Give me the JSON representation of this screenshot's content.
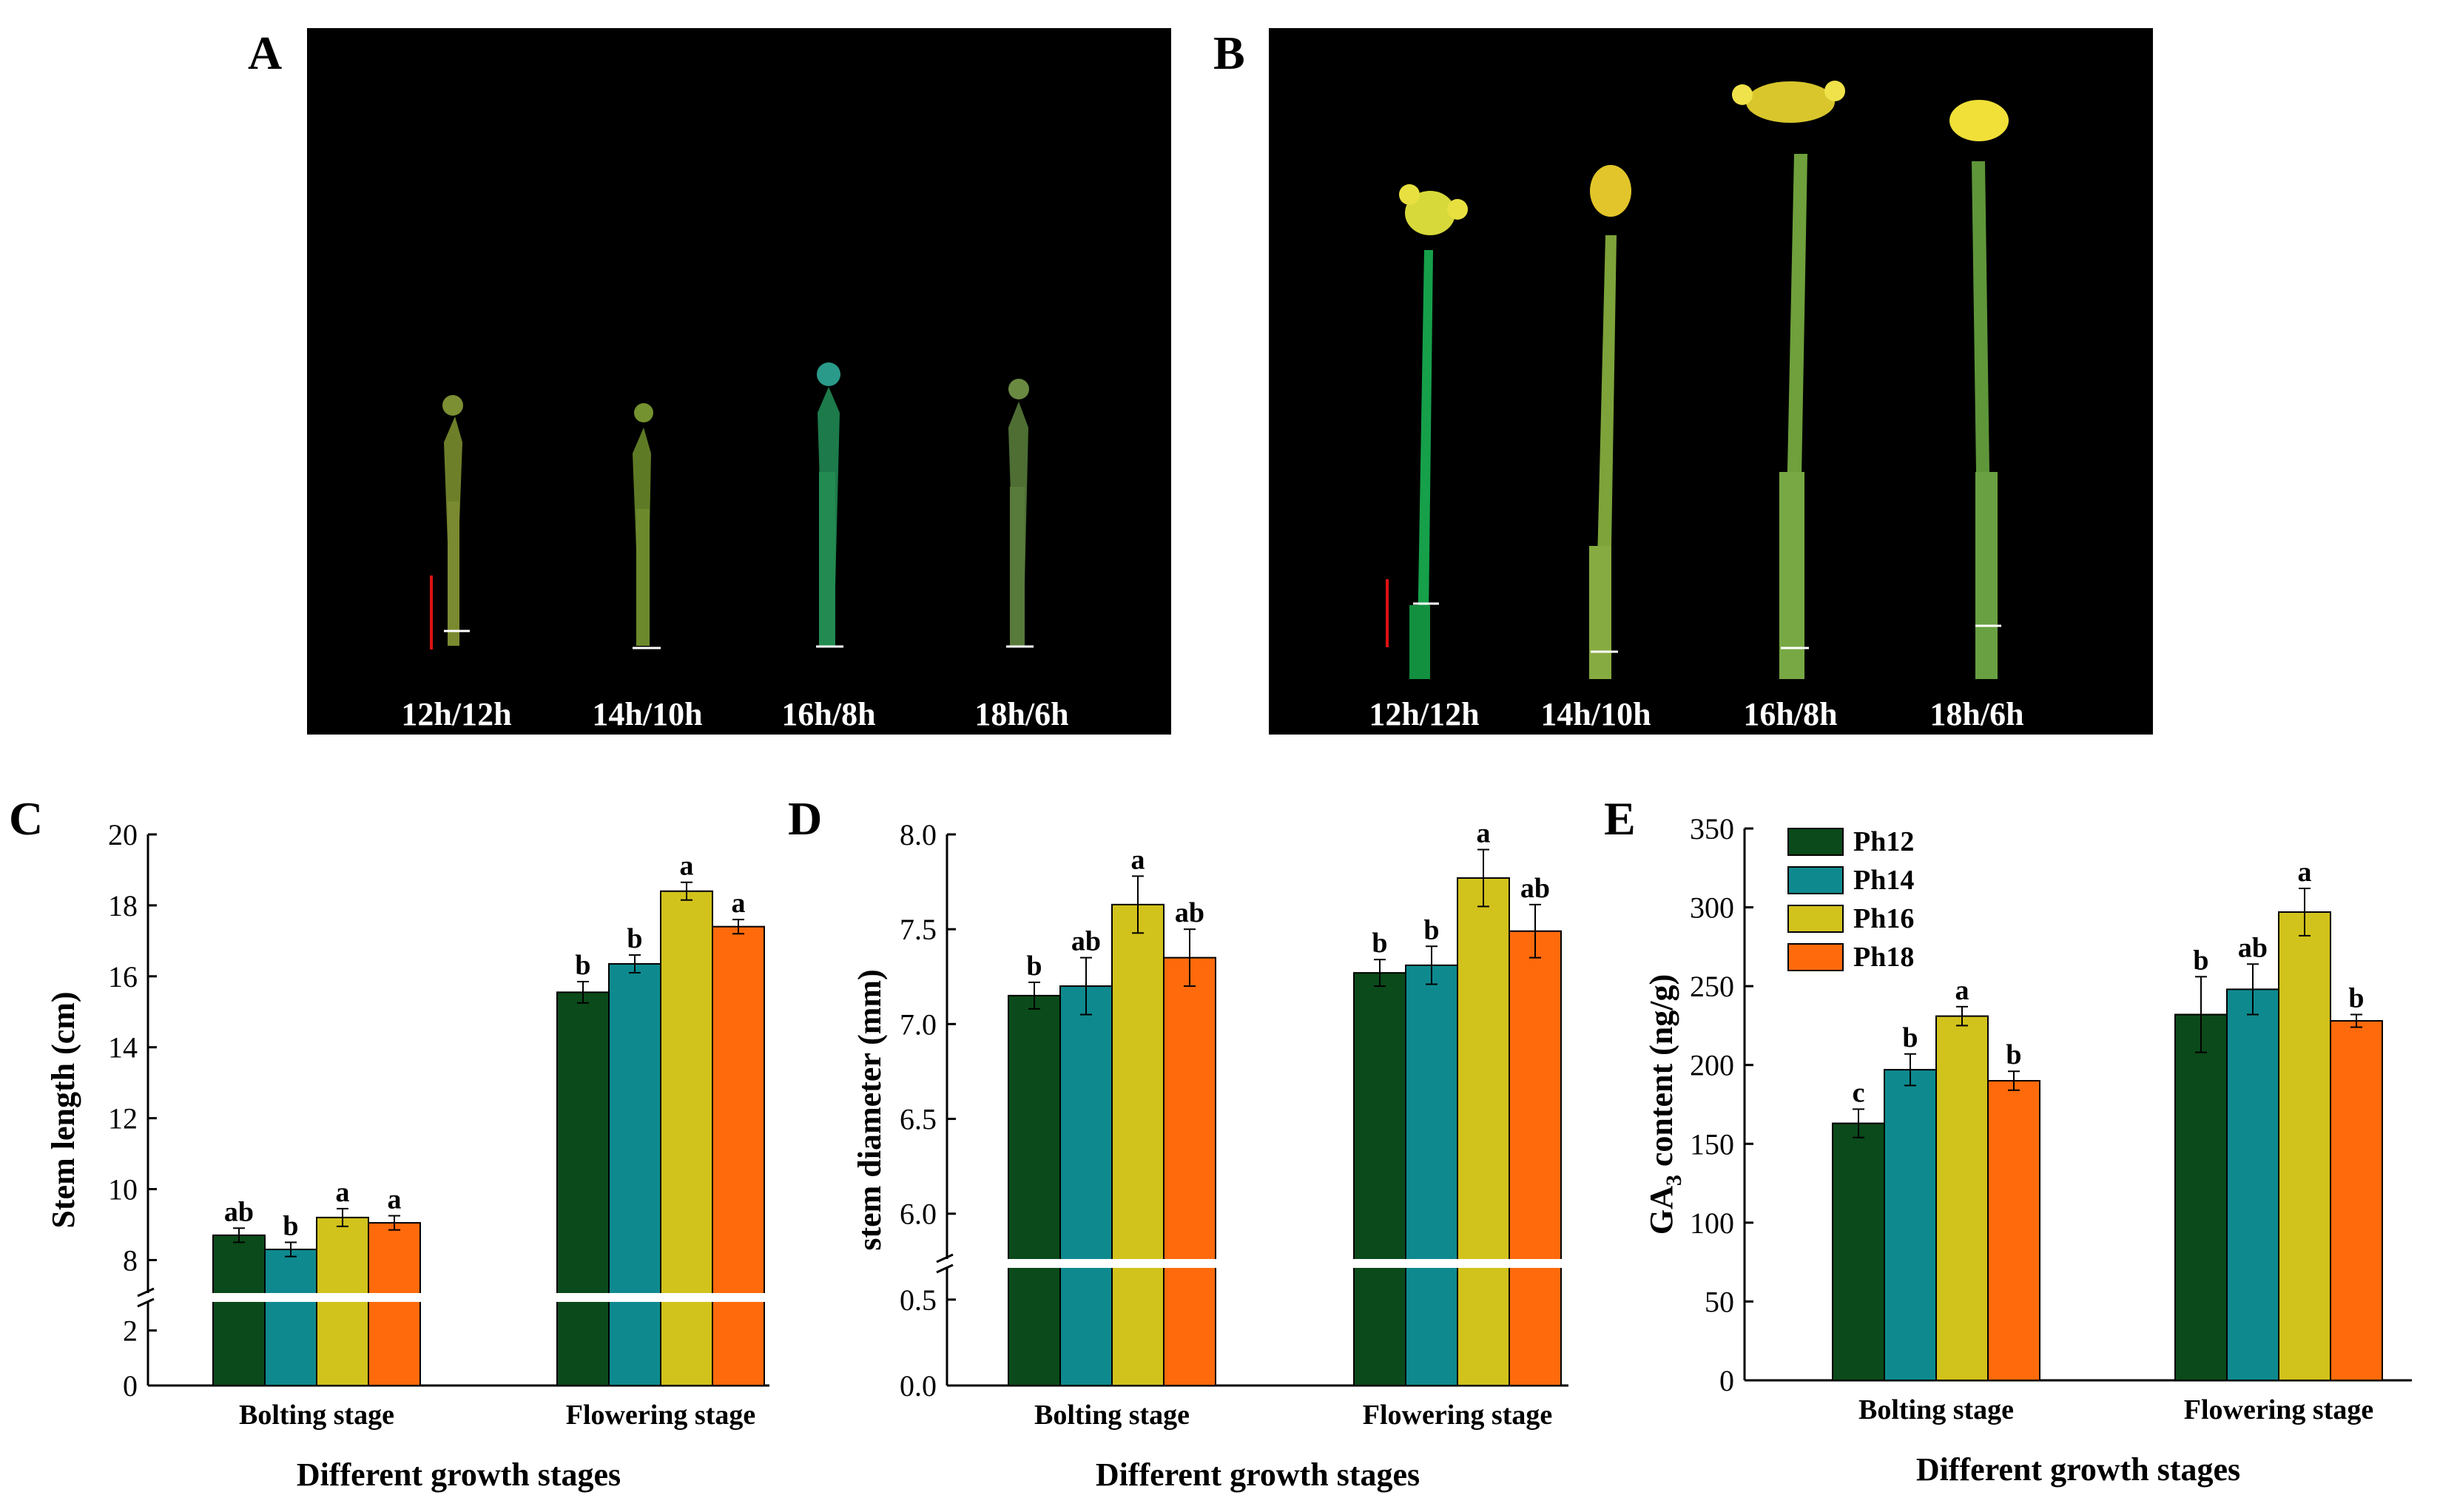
{
  "panels": {
    "A": {
      "letter": "A",
      "labels": [
        "12h/12h",
        "14h/10h",
        "16h/8h",
        "18h/6h"
      ]
    },
    "B": {
      "letter": "B",
      "labels": [
        "12h/12h",
        "14h/10h",
        "16h/8h",
        "18h/6h"
      ]
    }
  },
  "colors": {
    "Ph12": "#0b4a1a",
    "Ph14": "#0e8a8f",
    "Ph16": "#d2c21c",
    "Ph18": "#ff6a0c"
  },
  "legend": [
    "Ph12",
    "Ph14",
    "Ph16",
    "Ph18"
  ],
  "chart_data": [
    {
      "panel": "C",
      "type": "bar",
      "ylabel": "Stem length (cm)",
      "xlabel": "Different growth stages",
      "categories": [
        "Bolting stage",
        "Flowering stage"
      ],
      "broken_axis": true,
      "lower_ticks": [
        "0",
        "2"
      ],
      "upper_ticks": [
        "8",
        "10",
        "12",
        "14",
        "16",
        "18",
        "20"
      ],
      "series": [
        {
          "name": "Ph12",
          "values": [
            8.7,
            15.55
          ],
          "errors": [
            0.2,
            0.3
          ],
          "letters": [
            "ab",
            "b"
          ]
        },
        {
          "name": "Ph14",
          "values": [
            8.3,
            16.35
          ],
          "errors": [
            0.2,
            0.25
          ],
          "letters": [
            "b",
            "b"
          ]
        },
        {
          "name": "Ph16",
          "values": [
            9.2,
            18.4
          ],
          "errors": [
            0.25,
            0.25
          ],
          "letters": [
            "a",
            "a"
          ]
        },
        {
          "name": "Ph18",
          "values": [
            9.05,
            17.4
          ],
          "errors": [
            0.2,
            0.2
          ],
          "letters": [
            "a",
            "a"
          ]
        }
      ]
    },
    {
      "panel": "D",
      "type": "bar",
      "ylabel": "stem diameter (mm)",
      "xlabel": "Different growth stages",
      "categories": [
        "Bolting stage",
        "Flowering stage"
      ],
      "broken_axis": true,
      "lower_ticks": [
        "0.0",
        "0.5"
      ],
      "upper_ticks": [
        "6.0",
        "6.5",
        "7.0",
        "7.5",
        "8.0"
      ],
      "series": [
        {
          "name": "Ph12",
          "values": [
            7.15,
            7.27
          ],
          "errors": [
            0.07,
            0.07
          ],
          "letters": [
            "b",
            "b"
          ]
        },
        {
          "name": "Ph14",
          "values": [
            7.2,
            7.31
          ],
          "errors": [
            0.15,
            0.1
          ],
          "letters": [
            "ab",
            "b"
          ]
        },
        {
          "name": "Ph16",
          "values": [
            7.63,
            7.77
          ],
          "errors": [
            0.15,
            0.15
          ],
          "letters": [
            "a",
            "a"
          ]
        },
        {
          "name": "Ph18",
          "values": [
            7.35,
            7.49
          ],
          "errors": [
            0.15,
            0.14
          ],
          "letters": [
            "ab",
            "ab"
          ]
        }
      ]
    },
    {
      "panel": "E",
      "type": "bar",
      "ylabel": "GA3 content (ng/g)",
      "ylabel_main": "GA",
      "ylabel_sub": "3",
      "ylabel_rest": " content (ng/g)",
      "xlabel": "Different growth stages",
      "categories": [
        "Bolting stage",
        "Flowering stage"
      ],
      "broken_axis": false,
      "ylim": [
        0,
        350
      ],
      "ticks": [
        "0",
        "50",
        "100",
        "150",
        "200",
        "250",
        "300",
        "350"
      ],
      "series": [
        {
          "name": "Ph12",
          "values": [
            163,
            232
          ],
          "errors": [
            9,
            24
          ],
          "letters": [
            "c",
            "b"
          ]
        },
        {
          "name": "Ph14",
          "values": [
            197,
            248
          ],
          "errors": [
            10,
            16
          ],
          "letters": [
            "b",
            "ab"
          ]
        },
        {
          "name": "Ph16",
          "values": [
            231,
            297
          ],
          "errors": [
            6,
            15
          ],
          "letters": [
            "a",
            "a"
          ]
        },
        {
          "name": "Ph18",
          "values": [
            190,
            228
          ],
          "errors": [
            6,
            4
          ],
          "letters": [
            "b",
            "b"
          ]
        }
      ]
    }
  ]
}
